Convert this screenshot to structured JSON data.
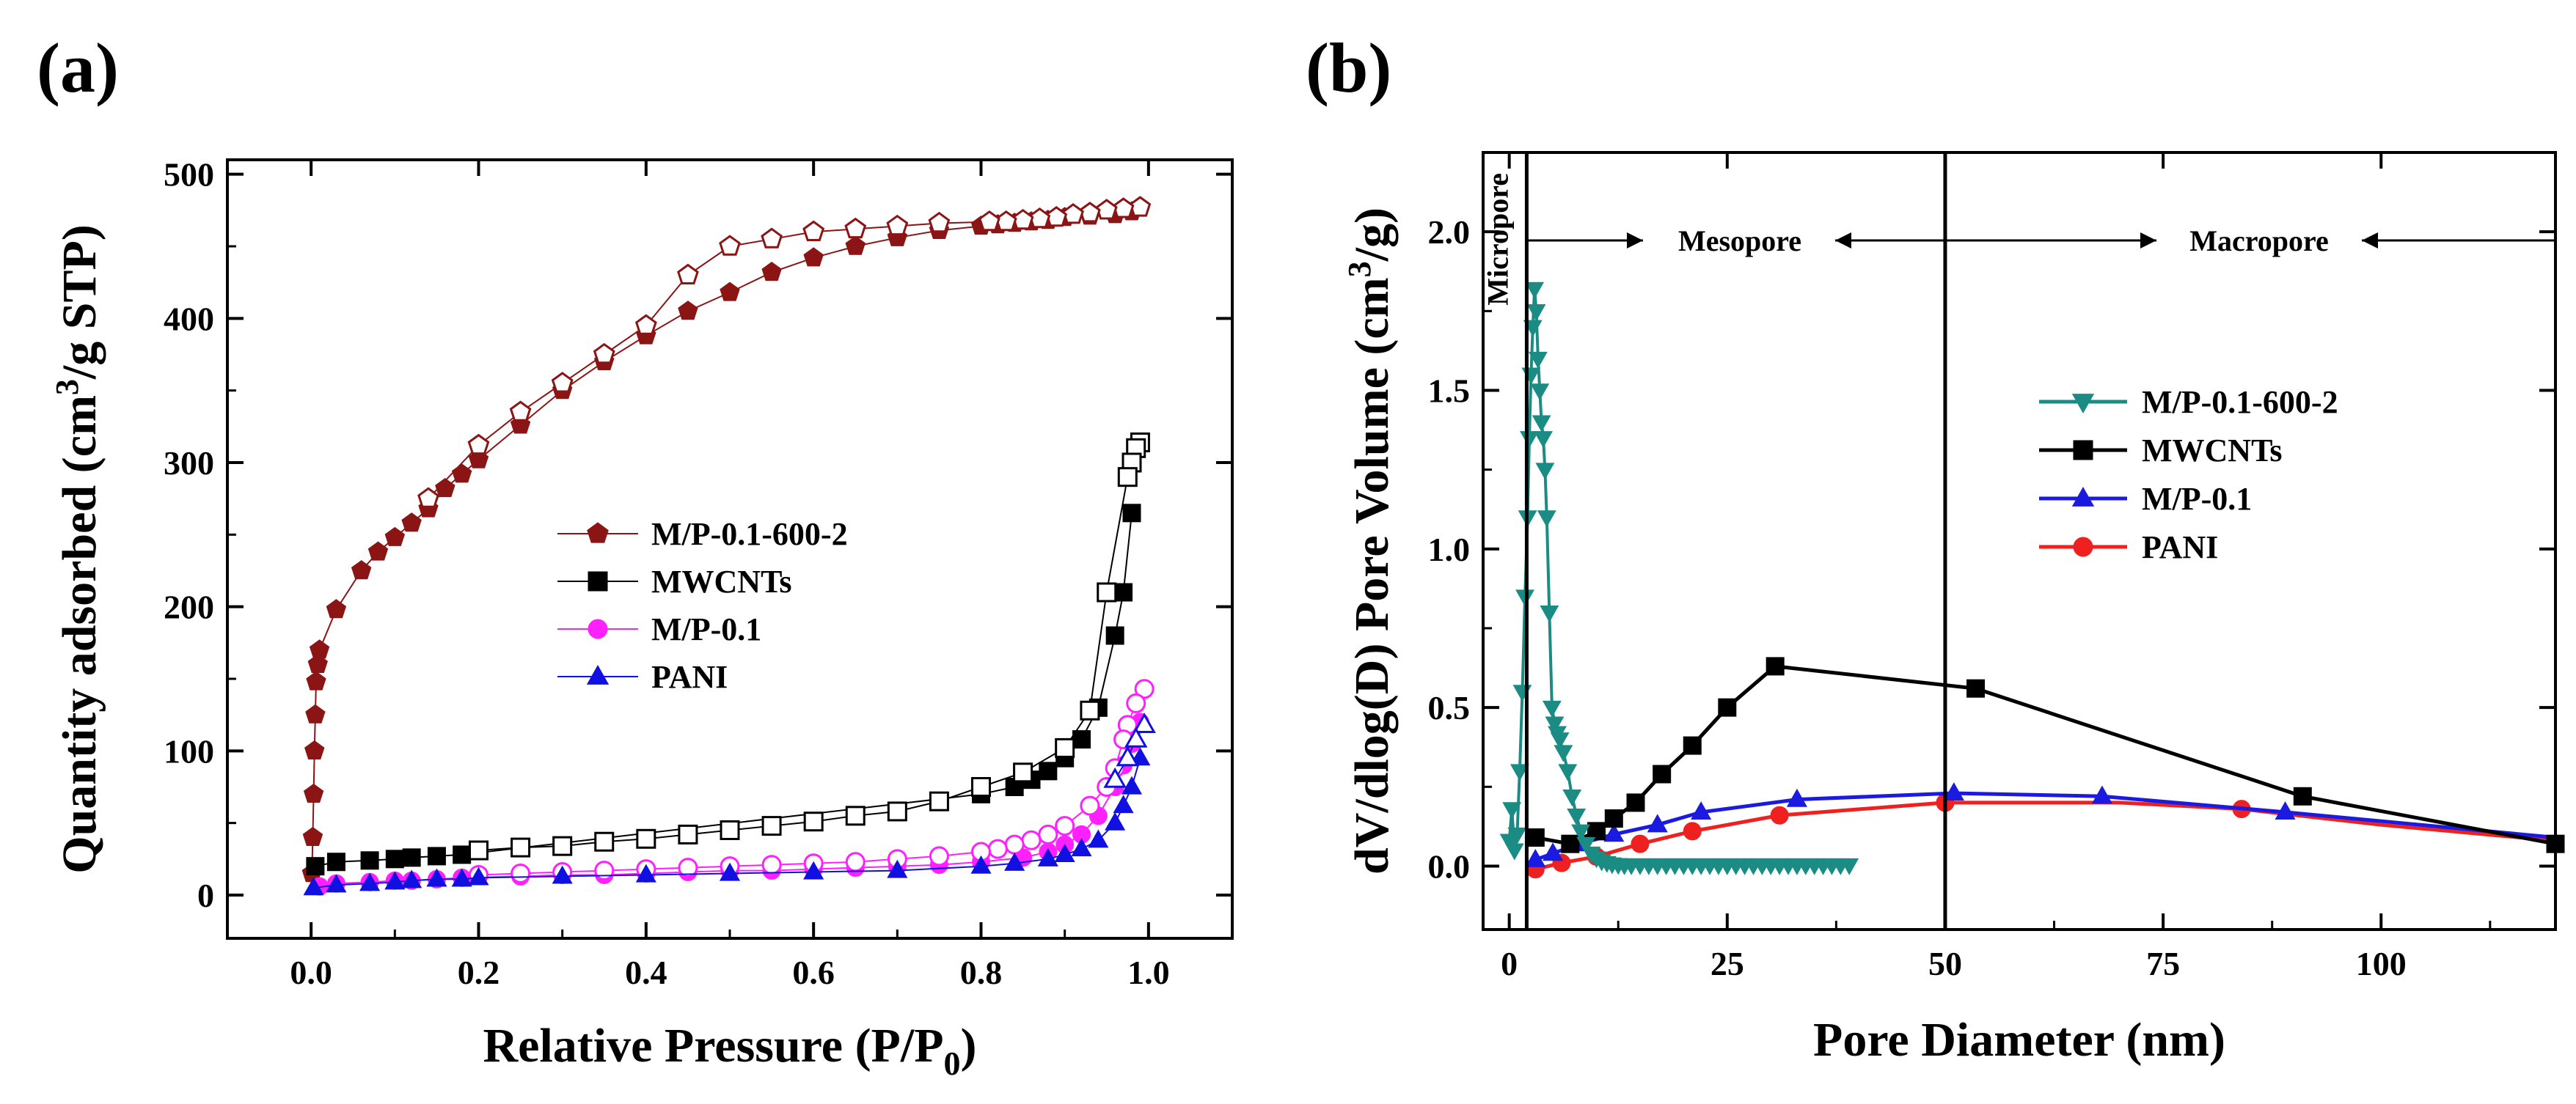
{
  "panel_a_label": "(a)",
  "panel_b_label": "(b)",
  "chart_data": [
    {
      "type": "line",
      "title": "",
      "xlabel": "Relative Pressure (P/P0)",
      "xlabel_main": "Relative Pressure (P/P",
      "xlabel_sub": "0",
      "xlabel_tail": ")",
      "ylabel": "Quantity adsorbed (cm3/g STP)",
      "ylabel_pre": "Quantity adsorbed (cm",
      "ylabel_sup": "3",
      "ylabel_post": "/g STP)",
      "xlim": [
        -0.1,
        1.1
      ],
      "ylim": [
        -30,
        510
      ],
      "xticks": [
        0.0,
        0.2,
        0.4,
        0.6,
        0.8,
        1.0
      ],
      "xtick_labels": [
        "0.0",
        "0.2",
        "0.4",
        "0.6",
        "0.8",
        "1.0"
      ],
      "yticks": [
        0,
        100,
        200,
        300,
        400,
        500
      ],
      "ytick_labels": [
        "0",
        "100",
        "200",
        "300",
        "400",
        "500"
      ],
      "legend_position": "center",
      "series": [
        {
          "name": "M/P-0.1-600-2",
          "color": "#8b1414",
          "marker": "pentagon",
          "adsorption": {
            "x": [
              0.001,
              0.002,
              0.003,
              0.004,
              0.005,
              0.006,
              0.008,
              0.01,
              0.03,
              0.06,
              0.08,
              0.1,
              0.12,
              0.14,
              0.16,
              0.18,
              0.2,
              0.25,
              0.3,
              0.35,
              0.4,
              0.45,
              0.5,
              0.55,
              0.6,
              0.65,
              0.7,
              0.75,
              0.8,
              0.82,
              0.84,
              0.86,
              0.88,
              0.9,
              0.93,
              0.96,
              0.98
            ],
            "y": [
              15,
              40,
              70,
              100,
              125,
              148,
              160,
              170,
              198,
              225,
              238,
              248,
              258,
              268,
              282,
              292,
              302,
              326,
              350,
              370,
              388,
              405,
              418,
              432,
              442,
              450,
              456,
              461,
              464,
              465,
              466,
              467,
              468,
              470,
              471,
              472,
              474
            ]
          },
          "desorption": {
            "x": [
              0.99,
              0.97,
              0.95,
              0.93,
              0.91,
              0.89,
              0.87,
              0.85,
              0.83,
              0.81,
              0.75,
              0.7,
              0.65,
              0.6,
              0.55,
              0.5,
              0.45,
              0.4,
              0.35,
              0.3,
              0.25,
              0.2,
              0.14
            ],
            "y": [
              477,
              476,
              475,
              473,
              472,
              470,
              469,
              468,
              467,
              467,
              466,
              464,
              462,
              460,
              455,
              450,
              430,
              395,
              375,
              355,
              335,
              312,
              275
            ]
          }
        },
        {
          "name": "MWCNTs",
          "color": "#000000",
          "marker": "square",
          "adsorption": {
            "x": [
              0.005,
              0.03,
              0.07,
              0.1,
              0.12,
              0.15,
              0.18,
              0.8,
              0.84,
              0.86,
              0.88,
              0.9,
              0.92,
              0.94,
              0.96,
              0.97,
              0.98
            ],
            "y": [
              20,
              23,
              24,
              25,
              26,
              27,
              28,
              70,
              75,
              80,
              86,
              95,
              108,
              130,
              180,
              210,
              265
            ]
          },
          "desorption": {
            "x": [
              0.99,
              0.985,
              0.98,
              0.975,
              0.95,
              0.93,
              0.9,
              0.85,
              0.8,
              0.75,
              0.7,
              0.65,
              0.6,
              0.55,
              0.5,
              0.45,
              0.4,
              0.35,
              0.3,
              0.25,
              0.2
            ],
            "y": [
              314,
              310,
              300,
              290,
              210,
              128,
              102,
              85,
              75,
              65,
              58,
              55,
              51,
              48,
              45,
              42,
              39,
              37,
              34,
              33,
              31
            ]
          }
        },
        {
          "name": "M/P-0.1",
          "color": "#ff20ff",
          "marker": "circle",
          "adsorption": {
            "x": [
              0.01,
              0.03,
              0.07,
              0.1,
              0.12,
              0.15,
              0.18,
              0.25,
              0.3,
              0.35,
              0.4,
              0.45,
              0.5,
              0.55,
              0.6,
              0.65,
              0.7,
              0.75,
              0.8,
              0.85,
              0.88,
              0.9,
              0.92,
              0.94,
              0.96,
              0.97,
              0.98,
              0.99
            ],
            "y": [
              6,
              8,
              9,
              10,
              10,
              11,
              12,
              13,
              14,
              14,
              15,
              16,
              17,
              17,
              18,
              19,
              20,
              21,
              23,
              26,
              30,
              35,
              42,
              55,
              75,
              90,
              105,
              120
            ]
          },
          "desorption": {
            "x": [
              0.995,
              0.985,
              0.975,
              0.97,
              0.96,
              0.95,
              0.93,
              0.9,
              0.88,
              0.86,
              0.84,
              0.82,
              0.8,
              0.75,
              0.7,
              0.65,
              0.6,
              0.55,
              0.5,
              0.45,
              0.4,
              0.35,
              0.3,
              0.25,
              0.2
            ],
            "y": [
              143,
              133,
              118,
              108,
              88,
              75,
              62,
              48,
              42,
              38,
              35,
              32,
              30,
              27,
              25,
              23,
              22,
              21,
              20,
              19,
              18,
              17,
              16,
              15,
              14
            ]
          }
        },
        {
          "name": "PANI",
          "color": "#1010e0",
          "marker": "triangle",
          "adsorption": {
            "x": [
              0.003,
              0.03,
              0.07,
              0.1,
              0.12,
              0.15,
              0.18,
              0.2,
              0.3,
              0.4,
              0.5,
              0.6,
              0.7,
              0.8,
              0.84,
              0.88,
              0.9,
              0.92,
              0.94,
              0.96,
              0.97,
              0.98,
              0.99
            ],
            "y": [
              5,
              7,
              8,
              9,
              10,
              11,
              11,
              12,
              13,
              14,
              15,
              16,
              17,
              20,
              22,
              25,
              28,
              32,
              38,
              50,
              62,
              75,
              95
            ]
          },
          "desorption": {
            "x": [
              0.995,
              0.985,
              0.975,
              0.96
            ],
            "y": [
              118,
              108,
              95,
              80
            ]
          }
        }
      ]
    },
    {
      "type": "line",
      "title": "",
      "xlabel": "Pore Diameter (nm)",
      "ylabel": "dV/dlog(D) Pore Volume (cm3/g)",
      "ylabel_pre": "dV/dlog(D) Pore Volume (cm",
      "ylabel_sup": "3",
      "ylabel_post": "/g)",
      "xlim": [
        -3,
        120
      ],
      "ylim": [
        -0.2,
        2.25
      ],
      "xticks": [
        0,
        25,
        50,
        75,
        100
      ],
      "xtick_labels": [
        "0",
        "25",
        "50",
        "75",
        "100"
      ],
      "yticks": [
        0.0,
        0.5,
        1.0,
        1.5,
        2.0
      ],
      "ytick_labels": [
        "0.0",
        "0.5",
        "1.0",
        "1.5",
        "2.0"
      ],
      "legend_position": "top-right",
      "boundaries": [
        2,
        50
      ],
      "regions": {
        "micro": "Micropore",
        "meso": "Mesopore",
        "macro": "Macropore"
      },
      "series": [
        {
          "name": "M/P-0.1-600-2",
          "color": "#1a8c84",
          "marker": "triangle-down",
          "x": [
            0.0,
            0.3,
            0.6,
            0.9,
            1.2,
            1.5,
            1.8,
            2.1,
            2.3,
            2.5,
            2.7,
            2.9,
            3.1,
            3.3,
            3.5,
            3.7,
            3.9,
            4.1,
            4.3,
            4.6,
            4.9,
            5.2,
            5.5,
            5.8,
            6.2,
            6.7,
            7.2,
            7.7,
            8.2,
            8.8,
            9.4,
            10.0,
            10.6,
            11.2,
            11.8,
            12.5,
            13.2,
            14,
            15,
            16,
            17,
            18,
            19,
            20,
            21,
            22,
            23,
            24,
            25,
            26,
            27,
            28,
            29,
            30,
            31,
            32,
            33,
            34,
            35,
            36,
            37,
            38,
            39
          ],
          "y": [
            0.08,
            0.18,
            0.05,
            0.1,
            0.3,
            0.55,
            0.85,
            1.1,
            1.35,
            1.55,
            1.7,
            1.82,
            1.75,
            1.6,
            1.5,
            1.4,
            1.35,
            1.25,
            1.1,
            0.8,
            0.5,
            0.45,
            0.42,
            0.4,
            0.36,
            0.3,
            0.22,
            0.16,
            0.11,
            0.07,
            0.04,
            0.025,
            0.015,
            0.01,
            0.006,
            0.004,
            0.003,
            0.003,
            0.003,
            0.003,
            0.003,
            0.003,
            0.003,
            0.003,
            0.003,
            0.003,
            0.003,
            0.003,
            0.003,
            0.003,
            0.003,
            0.003,
            0.003,
            0.003,
            0.003,
            0.003,
            0.003,
            0.003,
            0.003,
            0.003,
            0.003,
            0.003,
            0.003
          ]
        },
        {
          "name": "MWCNTs",
          "color": "#000000",
          "marker": "square",
          "x": [
            3,
            7,
            10,
            12,
            14.5,
            17.5,
            21,
            25,
            30.5,
            53.5,
            91,
            120
          ],
          "y": [
            0.09,
            0.07,
            0.11,
            0.15,
            0.2,
            0.29,
            0.38,
            0.5,
            0.63,
            0.56,
            0.22,
            0.07
          ]
        },
        {
          "name": "M/P-0.1",
          "color": "#1a1ae0",
          "marker": "triangle",
          "x": [
            3,
            5,
            8,
            12,
            17,
            22,
            33,
            51,
            68,
            89,
            120
          ],
          "y": [
            0.02,
            0.04,
            0.07,
            0.1,
            0.13,
            0.17,
            0.21,
            0.23,
            0.22,
            0.17,
            0.09
          ],
          "mark_x": [
            3,
            5,
            8,
            12,
            17,
            22,
            33,
            51,
            68,
            89
          ]
        },
        {
          "name": "PANI",
          "color": "#ee2020",
          "marker": "circle",
          "x": [
            3,
            6,
            10,
            15,
            21,
            31,
            50,
            70,
            84,
            100,
            120
          ],
          "y": [
            -0.01,
            0.01,
            0.03,
            0.07,
            0.11,
            0.16,
            0.2,
            0.2,
            0.18,
            0.13,
            0.08
          ],
          "mark_x": [
            3,
            6,
            10,
            15,
            21,
            31,
            50,
            84
          ]
        }
      ]
    }
  ]
}
